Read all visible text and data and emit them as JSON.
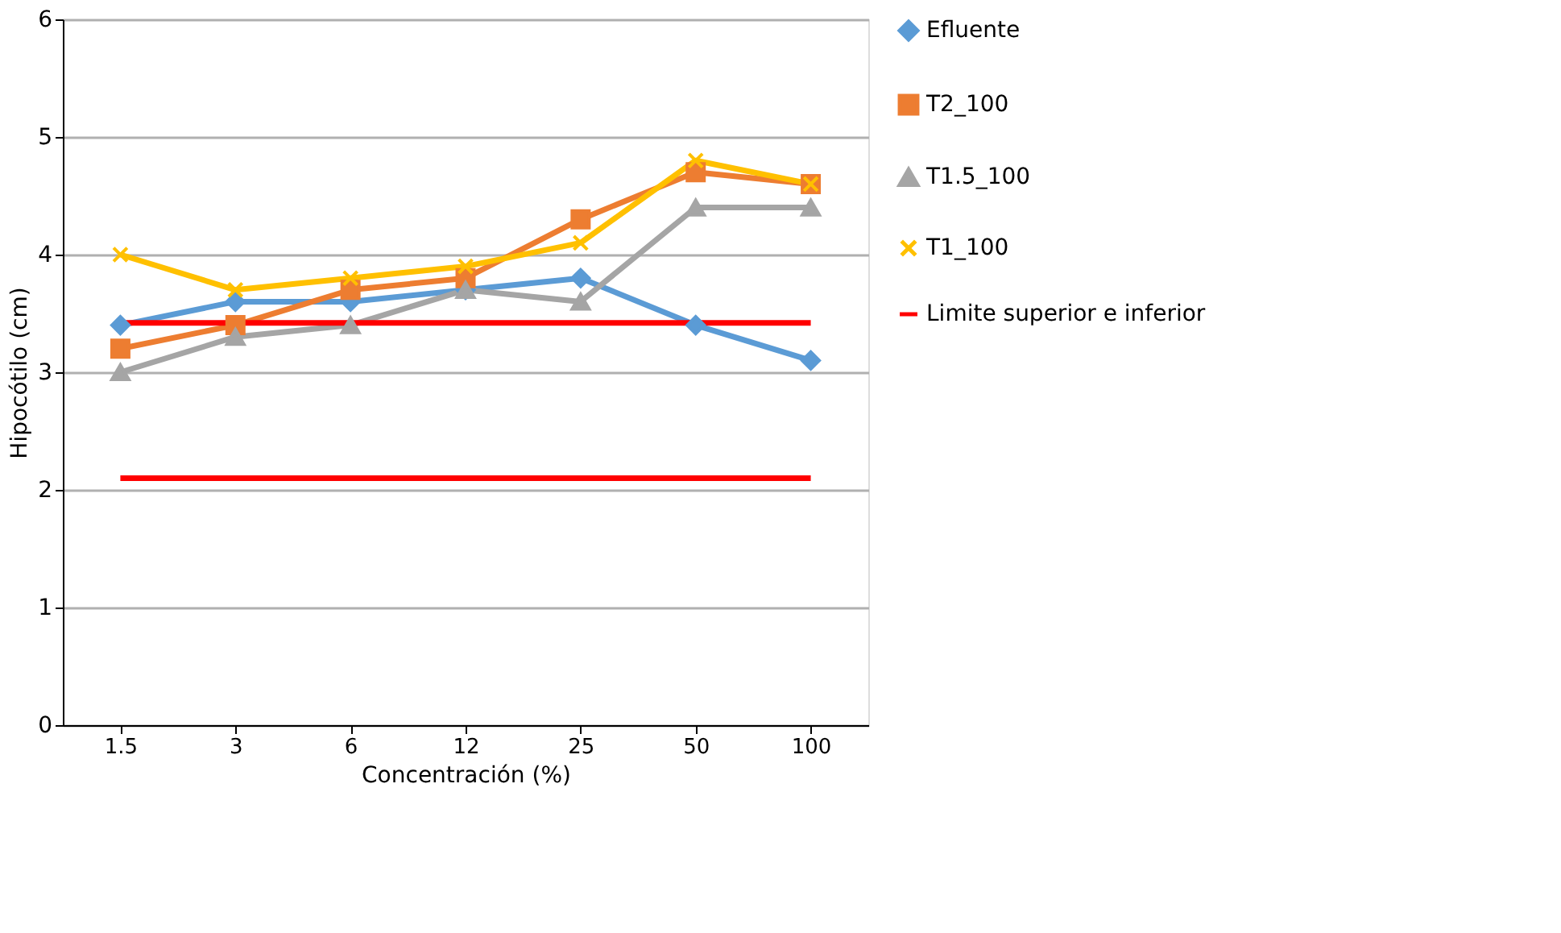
{
  "chart_data": {
    "type": "line",
    "xlabel": "Concentración (%)",
    "ylabel": "Hipocótilo (cm)",
    "categories": [
      "1.5",
      "3",
      "6",
      "12",
      "25",
      "50",
      "100"
    ],
    "series": [
      {
        "name": "Efluente",
        "color": "#5b9bd5",
        "marker": "diamond",
        "values": [
          3.4,
          3.6,
          3.6,
          3.7,
          3.8,
          3.4,
          3.1
        ]
      },
      {
        "name": "T2_100",
        "color": "#ed7d31",
        "marker": "square",
        "values": [
          3.2,
          3.4,
          3.7,
          3.8,
          4.3,
          4.7,
          4.6
        ]
      },
      {
        "name": "T1.5_100",
        "color": "#a5a5a5",
        "marker": "triangle",
        "values": [
          3.0,
          3.3,
          3.4,
          3.7,
          3.6,
          4.4,
          4.4
        ]
      },
      {
        "name": "T1_100",
        "color": "#ffc000",
        "marker": "cross",
        "values": [
          4.0,
          3.7,
          3.8,
          3.9,
          4.1,
          4.8,
          4.6
        ]
      },
      {
        "name": "Limite superior e inferior",
        "color": "#ff0000",
        "marker": "none",
        "values": [
          3.42,
          3.42,
          3.42,
          3.42,
          3.42,
          3.42,
          3.42
        ]
      },
      {
        "color": "#ff0000",
        "marker": "none",
        "values": [
          2.1,
          2.1,
          2.1,
          2.1,
          2.1,
          2.1,
          2.1
        ]
      }
    ],
    "ylim": [
      0,
      6
    ],
    "yticks": [
      0,
      1,
      2,
      3,
      4,
      5,
      6
    ],
    "grid": "y",
    "legend": "right"
  }
}
